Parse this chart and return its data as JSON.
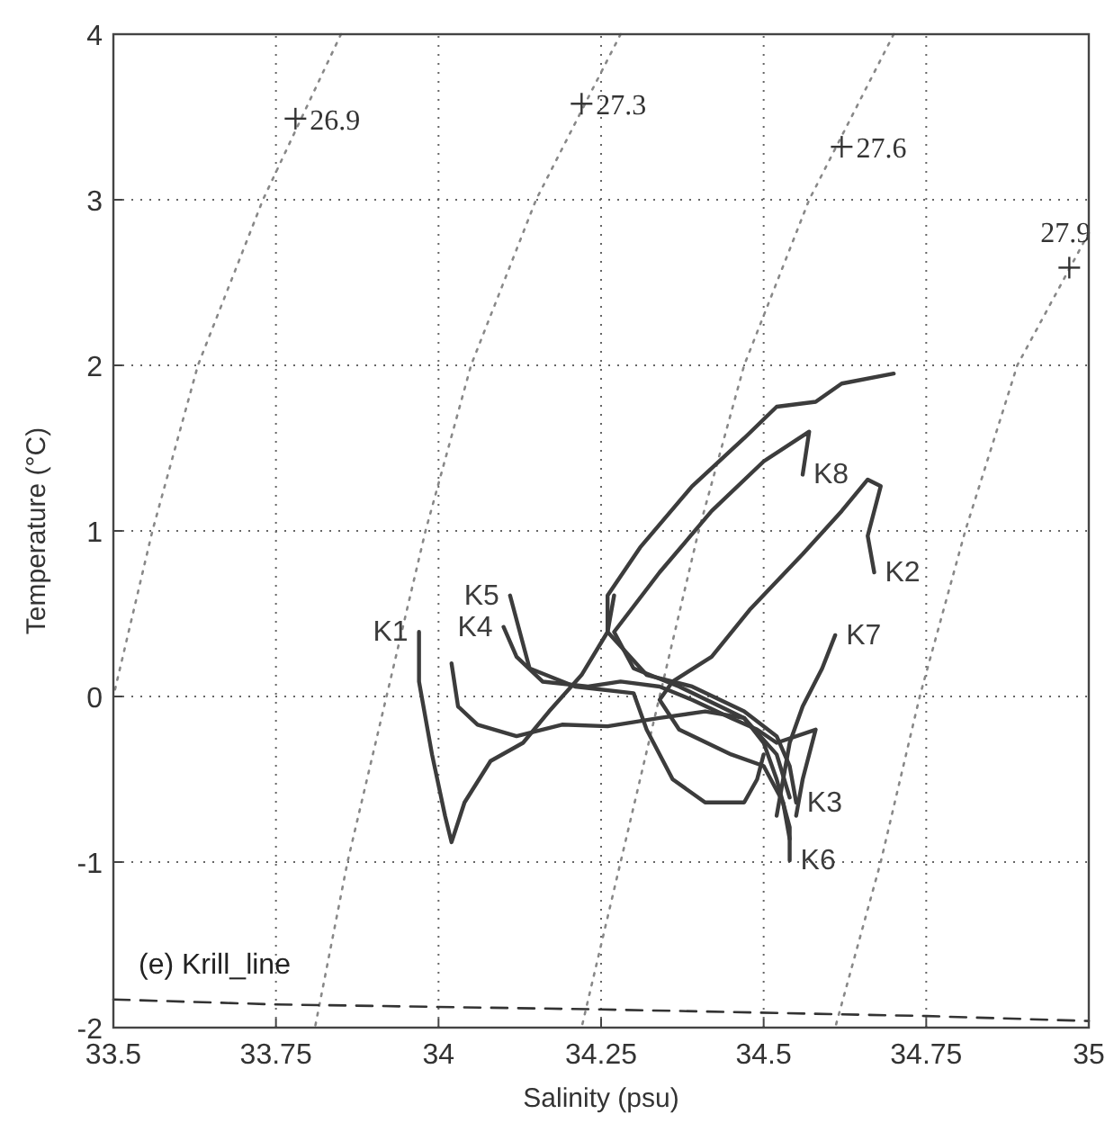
{
  "chart_data": {
    "type": "line",
    "xlabel": "Salinity (psu)",
    "ylabel": "Temperature (°C)",
    "xlim": [
      33.5,
      35
    ],
    "xticks": [
      33.5,
      33.75,
      34,
      34.25,
      34.5,
      34.75,
      35
    ],
    "ylim": [
      -2,
      4
    ],
    "yticks": [
      -2,
      -1,
      0,
      1,
      2,
      3,
      4
    ],
    "grid": true,
    "marker": "none",
    "series": [
      {
        "color": "#888888",
        "line_style": "dotted",
        "x": [
          33.85,
          33.73,
          33.63,
          33.56,
          33.5
        ],
        "values": [
          4,
          3,
          2,
          1,
          0
        ]
      },
      {
        "color": "#888888",
        "line_style": "dotted",
        "x": [
          34.28,
          34.15,
          34.05,
          33.98,
          33.92,
          33.86,
          33.81
        ],
        "values": [
          4,
          3,
          2,
          1,
          0,
          -1,
          -2
        ]
      },
      {
        "color": "#888888",
        "line_style": "dotted",
        "x": [
          34.7,
          34.57,
          34.47,
          34.4,
          34.34,
          34.28,
          34.22
        ],
        "values": [
          4,
          3,
          2,
          1,
          0,
          -1,
          -2
        ]
      },
      {
        "color": "#888888",
        "line_style": "dotted",
        "x": [
          35,
          34.89,
          34.81,
          34.74,
          34.68,
          34.61
        ],
        "values": [
          2.8,
          2,
          1,
          0,
          -1,
          -2
        ]
      },
      {
        "color": "#333333",
        "line_style": "dashed",
        "x": [
          33.5,
          33.75,
          34.25,
          34.75,
          35
        ],
        "values": [
          -1.83,
          -1.86,
          -1.89,
          -1.93,
          -1.96
        ]
      },
      {
        "name": "K1",
        "color": "#3c3c3c",
        "line_style": "solid",
        "x": [
          33.97,
          33.97,
          33.99,
          34.01,
          34.02,
          34.04,
          34.08,
          34.13,
          34.17,
          34.22,
          34.26,
          34.27
        ],
        "values": [
          0.39,
          0.09,
          -0.35,
          -0.72,
          -0.88,
          -0.64,
          -0.39,
          -0.28,
          -0.09,
          0.13,
          0.39,
          0.61
        ]
      },
      {
        "name": "K2",
        "color": "#3c3c3c",
        "line_style": "solid",
        "x": [
          34.67,
          34.66,
          34.68,
          34.66,
          34.62,
          34.56,
          34.48,
          34.42,
          34.36,
          34.34,
          34.37,
          34.45,
          34.5,
          34.53,
          34.54
        ],
        "values": [
          0.75,
          0.97,
          1.27,
          1.31,
          1.12,
          0.86,
          0.53,
          0.24,
          0.09,
          -0.02,
          -0.2,
          -0.35,
          -0.42,
          -0.64,
          -0.86
        ]
      },
      {
        "name": "K3",
        "color": "#3c3c3c",
        "line_style": "solid",
        "x": [
          34.55,
          34.54,
          34.52,
          34.47,
          34.39,
          34.32,
          34.26,
          34.26,
          34.31,
          34.39,
          34.47,
          34.52,
          34.58,
          34.62,
          34.7
        ],
        "values": [
          -0.64,
          -0.42,
          -0.24,
          -0.09,
          0.06,
          0.13,
          0.39,
          0.61,
          0.9,
          1.27,
          1.56,
          1.75,
          1.78,
          1.89,
          1.95
        ]
      },
      {
        "name": "K4",
        "color": "#3c3c3c",
        "line_style": "solid",
        "x": [
          34.1,
          34.12,
          34.16,
          34.23,
          34.28,
          34.34,
          34.39,
          34.45,
          34.49,
          34.52,
          34.58,
          34.56,
          34.55
        ],
        "values": [
          0.42,
          0.24,
          0.09,
          0.06,
          0.09,
          0.06,
          -0.02,
          -0.13,
          -0.2,
          -0.28,
          -0.2,
          -0.5,
          -0.72
        ]
      },
      {
        "name": "K5",
        "color": "#3c3c3c",
        "line_style": "solid",
        "x": [
          34.11,
          34.14,
          34.21,
          34.3,
          34.32,
          34.36,
          34.41,
          34.47,
          34.49,
          34.5
        ],
        "values": [
          0.61,
          0.17,
          0.06,
          0.02,
          -0.2,
          -0.5,
          -0.64,
          -0.64,
          -0.5,
          -0.35
        ]
      },
      {
        "name": "K6",
        "color": "#3c3c3c",
        "line_style": "solid",
        "x": [
          34.54,
          34.54,
          34.52,
          34.5,
          34.47,
          34.41,
          34.34,
          34.26,
          34.19,
          34.12,
          34.06,
          34.03,
          34.02
        ],
        "values": [
          -0.99,
          -0.79,
          -0.5,
          -0.28,
          -0.13,
          -0.09,
          -0.13,
          -0.18,
          -0.17,
          -0.24,
          -0.17,
          -0.06,
          0.2
        ]
      },
      {
        "name": "K7",
        "color": "#3c3c3c",
        "line_style": "solid",
        "x": [
          34.61,
          34.59,
          34.56,
          34.54,
          34.53,
          34.52
        ],
        "values": [
          0.37,
          0.17,
          -0.06,
          -0.28,
          -0.5,
          -0.72
        ]
      },
      {
        "name": "K8",
        "color": "#3c3c3c",
        "line_style": "solid",
        "x": [
          34.56,
          34.57,
          34.5,
          34.42,
          34.34,
          34.27,
          34.3,
          34.37,
          34.47,
          34.52,
          34.54
        ],
        "values": [
          1.34,
          1.6,
          1.42,
          1.12,
          0.75,
          0.39,
          0.17,
          0.06,
          -0.13,
          -0.35,
          -0.61
        ]
      }
    ],
    "annotations": [
      {
        "text": "26.9",
        "x": 33.78,
        "y": 3.49
      },
      {
        "text": "27.3",
        "x": 34.22,
        "y": 3.58
      },
      {
        "text": "27.6",
        "x": 34.62,
        "y": 3.32
      },
      {
        "text": "27.9",
        "x": 34.97,
        "y": 2.59
      },
      "(e) Krill_line"
    ]
  }
}
